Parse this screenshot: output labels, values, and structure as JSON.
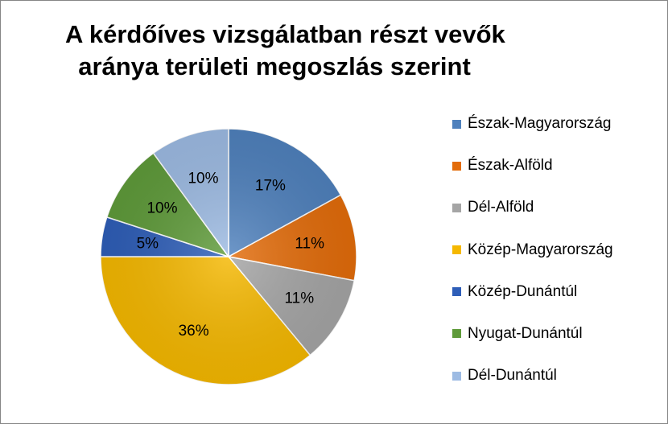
{
  "chart_data": {
    "type": "pie",
    "title_lines": [
      "A kérdőíves vizsgálatban részt vevők",
      "aránya területi megoszlás szerint"
    ],
    "categories": [
      "Észak-Magyarország",
      "Észak-Alföld",
      "Dél-Alföld",
      "Közép-Magyarország",
      "Közép-Dunántúl",
      "Nyugat-Dunántúl",
      "Dél-Dunántúl"
    ],
    "values": [
      17,
      11,
      11,
      36,
      5,
      10,
      10
    ],
    "data_labels": [
      "17%",
      "11%",
      "11%",
      "36%",
      "5%",
      "10%",
      "10%"
    ],
    "colors": [
      "#4f81bd",
      "#e36c0a",
      "#a5a5a5",
      "#f5b800",
      "#2e5eb8",
      "#5f9b3a",
      "#9dbbe3"
    ],
    "legend_position": "right"
  }
}
